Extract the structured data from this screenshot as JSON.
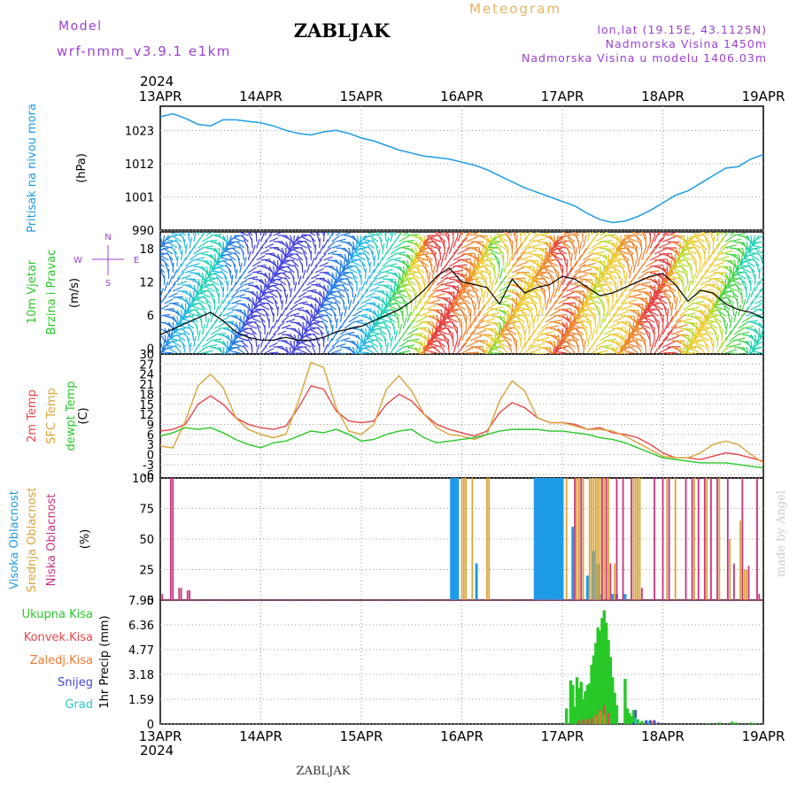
{
  "header": {
    "model_label": "Model",
    "model_name": "wrf-nmm_v3.9.1 e1km",
    "station": "ZABLJAK",
    "product": "Meteogram",
    "lonlat": "lon,lat (19.15E, 43.1125N)",
    "elevation": "Nadmorska Visina 1450m",
    "model_elevation": "Nadmorska Visina u modelu 1406.03m",
    "year": "2024",
    "footer_station": "ZABLJAK",
    "credit": "made by Angel"
  },
  "colors": {
    "pressure": "#1e9be6",
    "temp2m": "#e8464b",
    "sfc": "#daa43a",
    "dewpt": "#28c828",
    "high_cloud": "#1e9be6",
    "mid_cloud": "#daa43a",
    "low_cloud": "#c8327d",
    "total_precip": "#28c828",
    "conv_precip": "#e8464b",
    "frozen_precip": "#f07832",
    "snow": "#4646dc",
    "hail": "#28c8c8",
    "purple_text": "#9b41d2",
    "title_orange": "#e6b464",
    "grid": "#999999"
  },
  "chart_data": {
    "x_axis": {
      "type": "time",
      "start": "2024-04-13T00:00",
      "end": "2024-04-19T00:00",
      "ticks": [
        "13APR",
        "14APR",
        "15APR",
        "16APR",
        "17APR",
        "18APR",
        "19APR"
      ]
    },
    "panels": [
      {
        "type": "line",
        "ylabel": "(hPa)",
        "side_labels": [
          "Pritisak na nivou mora"
        ],
        "yticks": [
          "1023",
          "1012",
          "1001",
          "990"
        ],
        "ylim": [
          990,
          1031
        ],
        "series": [
          {
            "name": "Pritisak na nivou mora",
            "color_key": "pressure",
            "t": [
              0,
              3,
              6,
              9,
              12,
              15,
              18,
              21,
              24,
              27,
              30,
              33,
              36,
              39,
              42,
              45,
              48,
              51,
              54,
              57,
              60,
              63,
              66,
              69,
              72,
              75,
              78,
              81,
              84,
              87,
              90,
              93,
              96,
              99,
              102,
              105,
              108,
              111,
              114,
              117,
              120,
              123,
              126,
              129,
              132,
              135,
              138,
              141,
              144
            ],
            "values": [
              1027.5,
              1028.5,
              1027,
              1025,
              1024.5,
              1026.5,
              1026.5,
              1026,
              1025.5,
              1024.5,
              1023,
              1022,
              1021.5,
              1022.5,
              1023,
              1022,
              1020.5,
              1019.5,
              1018,
              1016.5,
              1015.5,
              1014.5,
              1014,
              1013.5,
              1012.5,
              1011.5,
              1010,
              1008,
              1006,
              1004,
              1002.5,
              1001,
              999.5,
              998,
              995.5,
              993.5,
              992.5,
              993,
              994.5,
              996.5,
              999,
              1001.5,
              1003,
              1005.5,
              1008,
              1010.5,
              1011,
              1013.5,
              1015
            ]
          }
        ]
      },
      {
        "type": "barbs+line",
        "ylabel": "(m/s)",
        "side_labels": [
          "10m Vjetar",
          "Brzina i Pravac"
        ],
        "direction_key": [
          "N",
          "E",
          "S",
          "W"
        ],
        "yticks": [
          "18",
          "12",
          "6",
          "0"
        ],
        "ylim": [
          -1,
          21
        ],
        "series": [
          {
            "name": "wind speed",
            "t": [
              0,
              3,
              6,
              9,
              12,
              15,
              18,
              21,
              24,
              27,
              30,
              33,
              36,
              39,
              42,
              45,
              48,
              51,
              54,
              57,
              60,
              63,
              66,
              69,
              72,
              75,
              78,
              81,
              84,
              87,
              90,
              93,
              96,
              99,
              102,
              105,
              108,
              111,
              114,
              117,
              120,
              123,
              126,
              129,
              132,
              135,
              138,
              141,
              144
            ],
            "values": [
              2.5,
              3.5,
              4.5,
              5.5,
              6.5,
              5,
              3,
              2,
              1.5,
              1.5,
              2,
              1.5,
              1.5,
              2,
              3,
              3.5,
              4,
              5,
              6,
              7,
              8.5,
              10.5,
              13,
              14.5,
              12,
              11.5,
              11,
              8,
              12.5,
              10,
              11,
              11.5,
              13,
              12.5,
              11,
              9.5,
              10,
              11,
              12,
              13,
              13.5,
              11.5,
              8.5,
              10.5,
              10,
              8,
              7,
              6.5,
              5.5
            ]
          }
        ]
      },
      {
        "type": "line",
        "ylabel": "(C)",
        "side_labels": [
          "2m Temp",
          "SFC Temp",
          "dewpt Temp"
        ],
        "yticks": [
          "30",
          "27",
          "24",
          "21",
          "18",
          "15",
          "12",
          "9",
          "6",
          "3",
          "0",
          "-3",
          "-6"
        ],
        "ylim": [
          -7,
          30
        ],
        "t": [
          0,
          3,
          6,
          9,
          12,
          15,
          18,
          21,
          24,
          27,
          30,
          33,
          36,
          39,
          42,
          45,
          48,
          51,
          54,
          57,
          60,
          63,
          66,
          69,
          72,
          75,
          78,
          81,
          84,
          87,
          90,
          93,
          96,
          99,
          102,
          105,
          108,
          111,
          114,
          117,
          120,
          123,
          126,
          129,
          132,
          135,
          138,
          141,
          144
        ],
        "series": [
          {
            "name": "2m Temp",
            "color_key": "temp2m",
            "values": [
              7,
              7.5,
              9,
              15,
              17.5,
              15,
              11,
              9,
              8,
              7.5,
              8.5,
              14,
              20.5,
              19.5,
              13,
              10,
              9.5,
              10,
              15,
              18,
              16,
              12,
              9,
              7.5,
              6.5,
              5.5,
              7,
              12.5,
              15.5,
              14,
              11,
              9.5,
              9.5,
              9,
              7.5,
              8,
              6.5,
              6,
              5,
              3,
              0.5,
              -1,
              -1,
              -1.5,
              -0.5,
              0.5,
              0,
              -1,
              -2
            ]
          },
          {
            "name": "SFC Temp",
            "color_key": "sfc",
            "values": [
              2.5,
              2,
              10,
              20.5,
              24,
              20,
              11,
              7.5,
              6,
              5,
              6,
              16,
              27.5,
              26,
              14,
              7,
              6,
              9,
              19.5,
              23.5,
              19,
              12,
              8,
              6,
              5.5,
              4.5,
              6,
              16,
              22,
              19,
              11,
              9.5,
              9.5,
              8.5,
              7.5,
              7.5,
              7,
              5.5,
              3.5,
              1.5,
              -0.5,
              -1,
              -1,
              0.5,
              3,
              4,
              3,
              0,
              -2.5
            ]
          },
          {
            "name": "dewpt Temp",
            "color_key": "dewpt",
            "values": [
              5.5,
              6.5,
              8,
              7.5,
              8,
              6.5,
              4.5,
              3,
              2,
              3.5,
              4,
              5.5,
              7,
              6.5,
              7.5,
              6,
              4,
              4.5,
              6,
              7,
              7.5,
              5,
              3.5,
              4,
              4.5,
              5,
              6,
              7,
              7.5,
              7.5,
              7.5,
              7,
              7,
              6.5,
              6,
              5,
              4.5,
              3.5,
              2,
              0.5,
              -1,
              -1.5,
              -2,
              -2.5,
              -2.5,
              -2.5,
              -3,
              -3.5,
              -4
            ]
          }
        ]
      },
      {
        "type": "bar",
        "ylabel": "(%)",
        "side_labels": [
          "Visoka Oblacnost",
          "Srednja Oblacnost",
          "Niska Oblacnost"
        ],
        "yticks": [
          "100",
          "75",
          "50",
          "25",
          "0"
        ],
        "ylim": [
          0,
          100
        ],
        "series": [
          {
            "name": "Visoka Oblacnost",
            "color_key": "high_cloud",
            "t": [
              69.5,
              70,
              70.5,
              71,
              75.5,
              89.5,
              90,
              90.5,
              91,
              91.5,
              92,
              92.5,
              93,
              93.5,
              94,
              94.5,
              95,
              95.5,
              96,
              98.5,
              102,
              103.5,
              104.5,
              105,
              108,
              109,
              111
            ],
            "values": [
              100,
              100,
              100,
              100,
              30,
              100,
              100,
              100,
              100,
              100,
              100,
              100,
              100,
              100,
              100,
              100,
              100,
              100,
              100,
              60,
              20,
              40,
              30,
              5,
              5,
              5,
              5
            ]
          },
          {
            "name": "Srednja Oblacnost",
            "color_key": "mid_cloud",
            "t": [
              72,
              72.5,
              73,
              74.5,
              78,
              78.5,
              97,
              99,
              99.5,
              100,
              101,
              102.5,
              103,
              103.5,
              104,
              104.5,
              105,
              106,
              107,
              108.5,
              113,
              113.5,
              114,
              114.5,
              121,
              123,
              127.5,
              130.5,
              133.5,
              136,
              138.5,
              139.5,
              140
            ],
            "values": [
              100,
              100,
              100,
              100,
              100,
              100,
              100,
              100,
              100,
              100,
              100,
              100,
              100,
              100,
              100,
              100,
              100,
              100,
              100,
              30,
              100,
              100,
              100,
              100,
              100,
              100,
              100,
              100,
              100,
              50,
              65,
              25,
              25
            ]
          },
          {
            "name": "Niska Oblacnost",
            "color_key": "low_cloud",
            "t": [
              0.5,
              2.5,
              3,
              4.5,
              5,
              6.5,
              7,
              99,
              100.5,
              105.5,
              106.5,
              107.5,
              109,
              110.5,
              112.5,
              115,
              118,
              120,
              121.5,
              125.5,
              127,
              128.5,
              130,
              131.5,
              133,
              135.5,
              137,
              139,
              140.5,
              142.5,
              143
            ],
            "values": [
              5,
              100,
              100,
              10,
              10,
              8,
              8,
              100,
              100,
              100,
              100,
              30,
              100,
              100,
              100,
              10,
              100,
              100,
              100,
              100,
              100,
              100,
              100,
              100,
              100,
              100,
              30,
              100,
              28,
              100,
              5
            ]
          }
        ]
      },
      {
        "type": "bar",
        "ylabel": "1hr Precip (mm)",
        "side_labels": [
          "Ukupna Kisa",
          "Konvek.Kisa",
          "Zaledj.Kisa",
          "Snijeg",
          "Grad"
        ],
        "yticks": [
          "7.95",
          "6.36",
          "4.77",
          "3.18",
          "1.59",
          "0"
        ],
        "ylim": [
          0,
          7.95
        ],
        "series": [
          {
            "name": "Ukupna Kisa",
            "color_key": "total_precip",
            "t": [
              97,
              98,
              98.5,
              99,
              99.5,
              100,
              100.5,
              101,
              101.5,
              102,
              102.5,
              103,
              103.5,
              104,
              104.5,
              105,
              105.5,
              106,
              106.5,
              107,
              107.5,
              108,
              108.5,
              109,
              111,
              111.5,
              112,
              112.5,
              113,
              114,
              115,
              116,
              117.5,
              131,
              133.5,
              136.5,
              137.5,
              141,
              142
            ],
            "values": [
              1.0,
              2.8,
              2.5,
              1.1,
              3.0,
              2.3,
              2.7,
              1.6,
              2.1,
              2.5,
              2.6,
              3.8,
              4.4,
              5.2,
              6.2,
              6.0,
              6.8,
              7.3,
              6.5,
              5.4,
              4.3,
              3.0,
              2.0,
              1.2,
              2.9,
              1.0,
              0.7,
              0.5,
              0.9,
              0.3,
              0.2,
              0.2,
              0.1,
              0.05,
              0.1,
              0.15,
              0.1,
              0.1,
              0.05
            ]
          },
          {
            "name": "Konvek.Kisa",
            "color_key": "conv_precip",
            "t": [
              100,
              101,
              102,
              103,
              104,
              105,
              106,
              107
            ],
            "values": [
              0.2,
              0.3,
              0.3,
              0.4,
              0.6,
              0.9,
              1.2,
              0.7
            ]
          },
          {
            "name": "Zaledj.Kisa",
            "color_key": "frozen_precip",
            "t": [
              104,
              105,
              106,
              116,
              117.5
            ],
            "values": [
              0.5,
              0.8,
              0.6,
              0.2,
              0.2
            ]
          },
          {
            "name": "Snijeg",
            "color_key": "snow",
            "t": [
              113,
              113.5,
              116,
              117,
              118,
              119
            ],
            "values": [
              0.1,
              0.9,
              0.25,
              0.25,
              0.25,
              0.1
            ]
          },
          {
            "name": "Grad",
            "color_key": "hail",
            "t": [
              113.5,
              116.5
            ],
            "values": [
              0.4,
              0.2
            ]
          }
        ]
      }
    ]
  }
}
